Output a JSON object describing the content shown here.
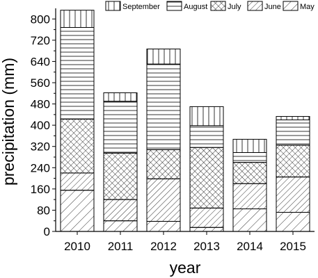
{
  "chart_data": {
    "type": "bar",
    "stacked": true,
    "title": "",
    "xlabel": "year",
    "ylabel": "precipitation (mm)",
    "categories": [
      "2010",
      "2011",
      "2012",
      "2013",
      "2014",
      "2015"
    ],
    "ylim": [
      0,
      840
    ],
    "yticks": [
      "0",
      "80",
      "160",
      "240",
      "320",
      "400",
      "480",
      "560",
      "640",
      "720",
      "800"
    ],
    "series": [
      {
        "name": "May",
        "pattern": "diagonal-sparse",
        "values": [
          155,
          40,
          38,
          15,
          85,
          72
        ]
      },
      {
        "name": "June",
        "pattern": "diagonal-dense",
        "values": [
          65,
          80,
          160,
          73,
          95,
          133
        ]
      },
      {
        "name": "July",
        "pattern": "crosshatch",
        "values": [
          203,
          175,
          110,
          228,
          80,
          120
        ]
      },
      {
        "name": "August",
        "pattern": "horizontal",
        "values": [
          345,
          195,
          322,
          82,
          37,
          95
        ]
      },
      {
        "name": "September",
        "pattern": "vertical",
        "values": [
          65,
          32,
          57,
          72,
          50,
          13
        ]
      }
    ],
    "legend_order": [
      "September",
      "August",
      "July",
      "June",
      "May"
    ],
    "legend_position": "top",
    "grid": false,
    "colors": {
      "bar_fill": "#ffffff",
      "stroke": "#000000"
    }
  }
}
